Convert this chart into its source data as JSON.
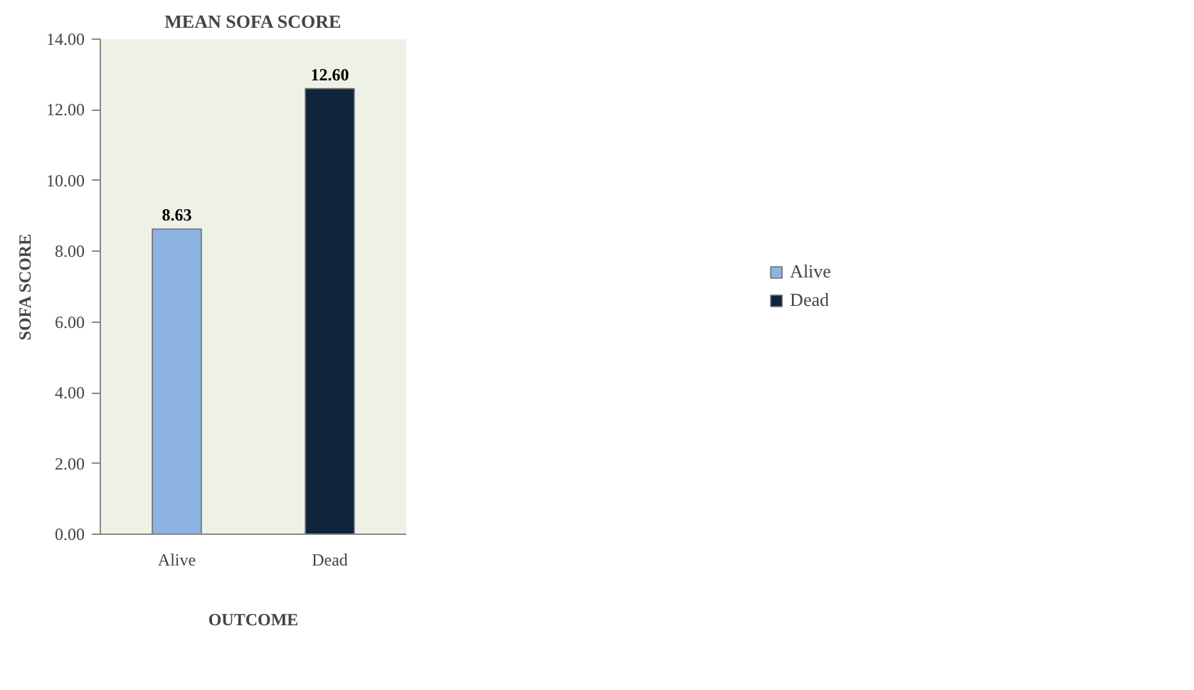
{
  "chart_data": {
    "type": "bar",
    "title": "MEAN SOFA SCORE",
    "xlabel": "OUTCOME",
    "ylabel": "SOFA SCORE",
    "categories": [
      "Alive",
      "Dead"
    ],
    "series": [
      {
        "name": "Alive",
        "color": "#8db3e2",
        "values": [
          8.63,
          null
        ],
        "value_labels": [
          "8.63",
          null
        ]
      },
      {
        "name": "Dead",
        "color": "#10243e",
        "values": [
          null,
          12.6
        ],
        "value_labels": [
          null,
          "12.60"
        ]
      }
    ],
    "ylim": [
      0,
      14
    ],
    "yticks": [
      {
        "value": 0,
        "label": "0.00"
      },
      {
        "value": 2,
        "label": "2.00"
      },
      {
        "value": 4,
        "label": "4.00"
      },
      {
        "value": 6,
        "label": "6.00"
      },
      {
        "value": 8,
        "label": "8.00"
      },
      {
        "value": 10,
        "label": "10.00"
      },
      {
        "value": 12,
        "label": "12.00"
      },
      {
        "value": 14,
        "label": "14.00"
      }
    ],
    "grid": false,
    "legend": "right"
  }
}
